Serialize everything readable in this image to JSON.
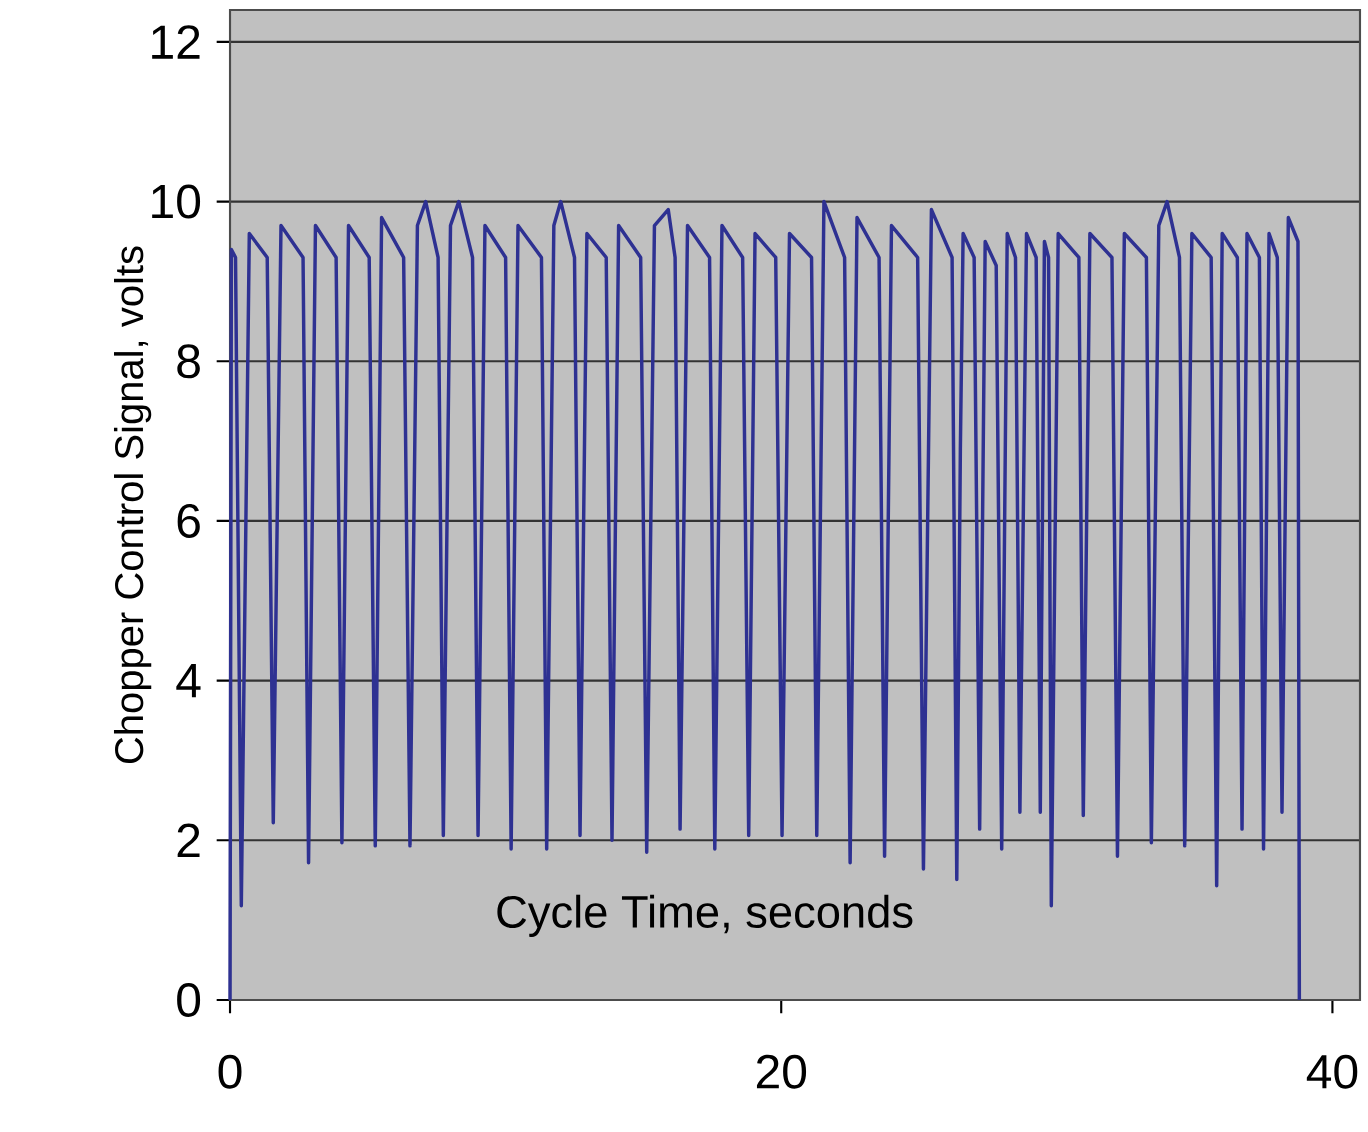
{
  "chart_data": {
    "type": "line",
    "xlabel": "Cycle Time, seconds",
    "ylabel": "Chopper Control Signal, volts",
    "xlim": [
      0,
      41
    ],
    "ylim": [
      0,
      12.4
    ],
    "xticks": [
      0,
      20,
      40
    ],
    "yticks": [
      0,
      2,
      4,
      6,
      8,
      10,
      12
    ],
    "grid": "y",
    "series": [
      {
        "color": "#2e3192",
        "x": [
          0,
          0.05,
          0.2,
          0.41,
          0.7,
          1.35,
          1.57,
          1.85,
          2.65,
          2.85,
          3.1,
          3.85,
          4.06,
          4.3,
          5.05,
          5.27,
          5.5,
          6.3,
          6.53,
          6.8,
          7.1,
          7.55,
          7.74,
          8.0,
          8.3,
          8.8,
          9.0,
          9.25,
          10.0,
          10.2,
          10.45,
          11.3,
          11.49,
          11.75,
          12.0,
          12.5,
          12.7,
          12.95,
          13.65,
          13.86,
          14.1,
          14.9,
          15.12,
          15.4,
          15.9,
          16.15,
          16.33,
          16.6,
          17.4,
          17.59,
          17.85,
          18.6,
          18.82,
          19.05,
          19.8,
          20.03,
          20.3,
          21.1,
          21.29,
          21.55,
          22.3,
          22.5,
          22.75,
          23.55,
          23.75,
          24.0,
          24.95,
          25.16,
          25.45,
          26.2,
          26.37,
          26.5,
          26.6,
          27.0,
          27.2,
          27.4,
          27.8,
          28.0,
          28.2,
          28.5,
          28.66,
          28.9,
          29.25,
          29.4,
          29.55,
          29.7,
          29.8,
          30.05,
          30.8,
          30.96,
          31.2,
          32.0,
          32.2,
          32.45,
          33.25,
          33.43,
          33.7,
          34.0,
          34.45,
          34.64,
          34.9,
          35.6,
          35.8,
          36.0,
          36.55,
          36.72,
          36.9,
          37.35,
          37.5,
          37.7,
          38.0,
          38.17,
          38.4,
          38.75,
          38.8
        ],
        "values": [
          0,
          9.4,
          9.3,
          1.18,
          9.6,
          9.3,
          2.22,
          9.7,
          9.3,
          1.72,
          9.7,
          9.3,
          1.97,
          9.7,
          9.3,
          1.93,
          9.8,
          9.3,
          1.93,
          9.7,
          10.0,
          9.3,
          2.06,
          9.7,
          10.0,
          9.3,
          2.06,
          9.7,
          9.3,
          1.89,
          9.7,
          9.3,
          1.89,
          9.7,
          10.0,
          9.3,
          2.06,
          9.6,
          9.3,
          2.0,
          9.7,
          9.3,
          1.85,
          9.7,
          9.9,
          9.3,
          2.14,
          9.7,
          9.3,
          1.89,
          9.7,
          9.3,
          2.06,
          9.6,
          9.3,
          2.06,
          9.6,
          9.3,
          2.06,
          10.0,
          9.3,
          1.72,
          9.8,
          9.3,
          1.8,
          9.7,
          9.3,
          1.64,
          9.9,
          9.3,
          1.51,
          6.9,
          9.6,
          9.3,
          2.14,
          9.5,
          9.2,
          1.89,
          9.6,
          9.3,
          2.35,
          9.6,
          9.3,
          2.35,
          9.5,
          9.3,
          1.18,
          9.6,
          9.3,
          2.31,
          9.6,
          9.3,
          1.8,
          9.6,
          9.3,
          1.97,
          9.7,
          10.0,
          9.3,
          1.93,
          9.6,
          9.3,
          1.43,
          9.6,
          9.3,
          2.14,
          9.6,
          9.3,
          1.89,
          9.6,
          9.3,
          2.35,
          9.8,
          9.5,
          0
        ]
      }
    ]
  }
}
